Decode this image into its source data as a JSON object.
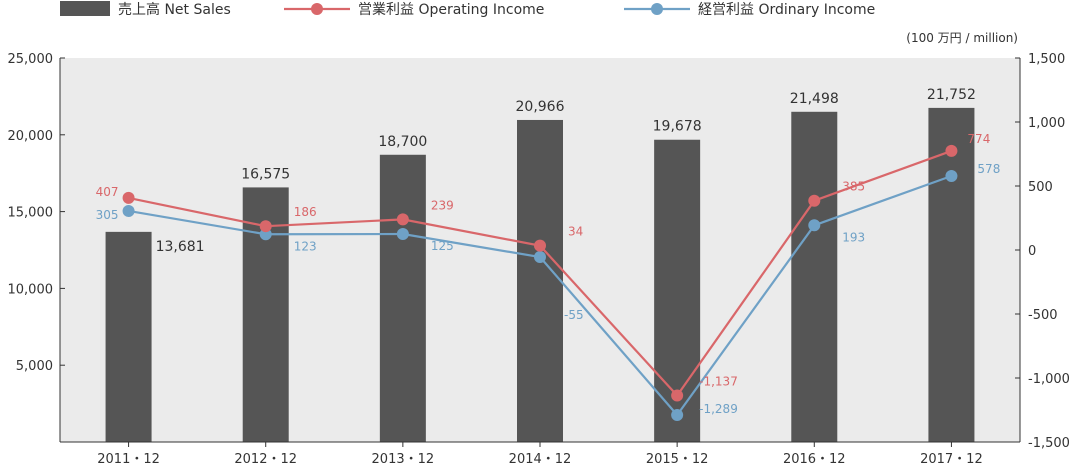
{
  "chart_data": {
    "type": "bar",
    "categories": [
      "2011・12",
      "2012・12",
      "2013・12",
      "2014・12",
      "2015・12",
      "2016・12",
      "2017・12"
    ],
    "unit_label": "(100 万円 / million)",
    "left_axis": {
      "ylim": [
        0,
        25000
      ],
      "ticks": [
        "5,000",
        "10,000",
        "15,000",
        "20,000",
        "25,000"
      ],
      "tick_values": [
        5000,
        10000,
        15000,
        20000,
        25000
      ]
    },
    "right_axis": {
      "ylim": [
        -1500,
        1500
      ],
      "ticks": [
        "-1,500",
        "-1,000",
        "-500",
        "0",
        "500",
        "1,000",
        "1,500"
      ],
      "tick_values": [
        -1500,
        -1000,
        -500,
        0,
        500,
        1000,
        1500
      ]
    },
    "series": [
      {
        "name": "売上高 Net Sales",
        "type": "bar",
        "axis": "left",
        "color": "#555555",
        "values": [
          13681,
          16575,
          18700,
          20966,
          19678,
          21498,
          21752
        ],
        "labels": [
          "13,681",
          "16,575",
          "18,700",
          "20,966",
          "19,678",
          "21,498",
          "21,752"
        ]
      },
      {
        "name": "営業利益 Operating Income",
        "type": "line",
        "axis": "right",
        "color": "#d9676a",
        "values": [
          407,
          186,
          239,
          34,
          -1137,
          385,
          774
        ],
        "labels": [
          "407",
          "186",
          "239",
          "34",
          "-1,137",
          "385",
          "774"
        ]
      },
      {
        "name": "経営利益 Ordinary Income",
        "type": "line",
        "axis": "right",
        "color": "#6fa1c6",
        "values": [
          305,
          123,
          125,
          -55,
          -1289,
          193,
          578
        ],
        "labels": [
          "305",
          "123",
          "125",
          "-55",
          "-1,289",
          "193",
          "578"
        ]
      }
    ],
    "grid": false,
    "legend_position": "top-left",
    "background": "#ebebeb"
  }
}
